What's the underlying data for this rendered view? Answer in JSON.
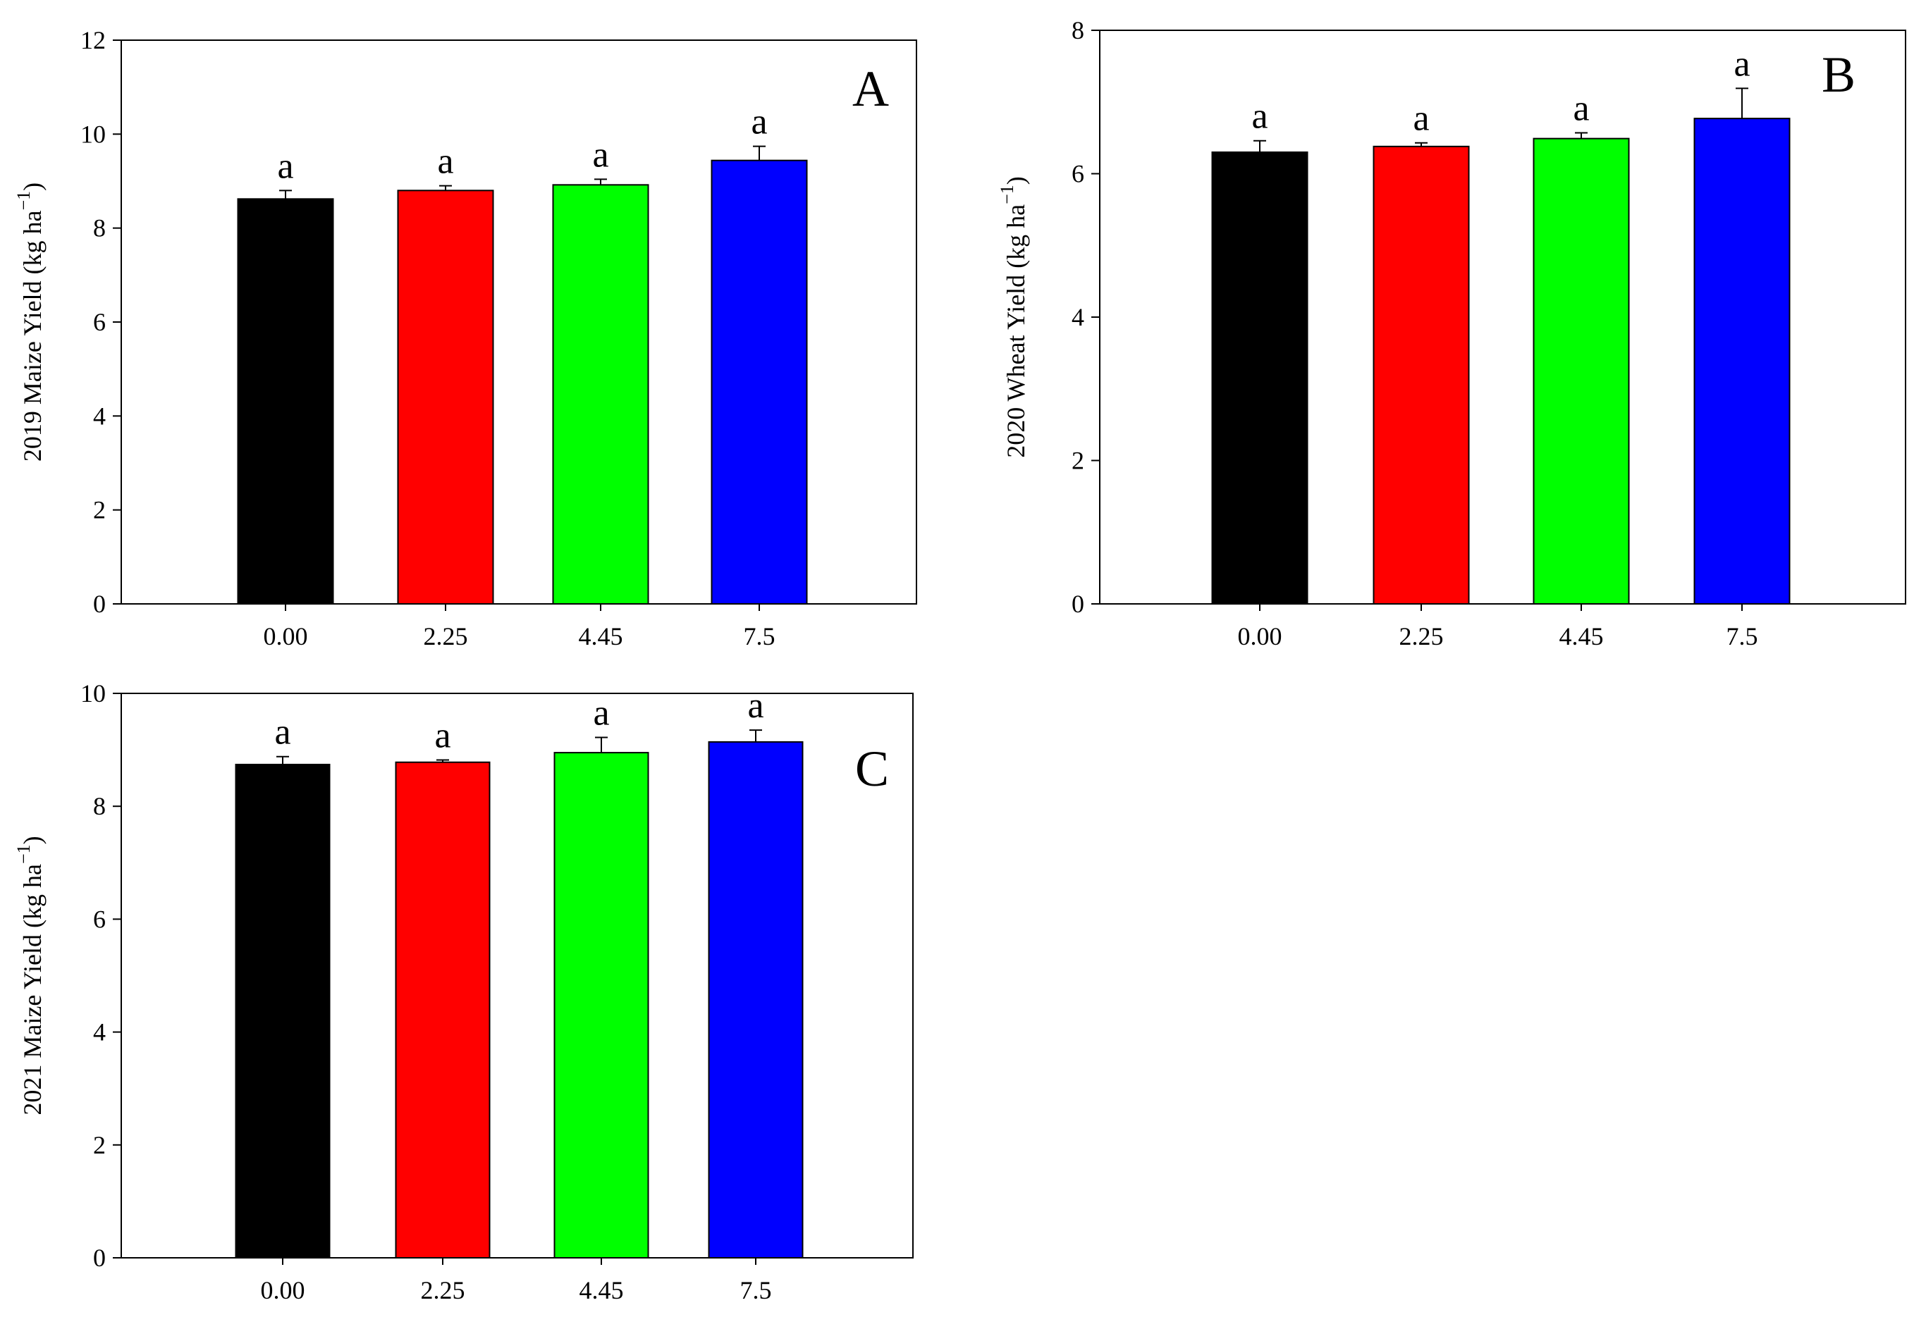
{
  "chart_data": [
    {
      "type": "bar",
      "panel": "A",
      "categories": [
        "0.00",
        "2.25",
        "4.45",
        "7.5"
      ],
      "values": [
        8.62,
        8.8,
        8.92,
        9.44
      ],
      "errors": [
        0.18,
        0.1,
        0.12,
        0.3
      ],
      "significance": [
        "a",
        "a",
        "a",
        "a"
      ],
      "colors": [
        "#000000",
        "#ff0000",
        "#00ff00",
        "#0000ff"
      ],
      "ylabel": "2019 Maize Yield (kg ha",
      "ylabel_sup": "−1",
      "ylabel_close": ")",
      "xlabel": "",
      "ylim": [
        0,
        12
      ],
      "yticks": [
        0,
        2,
        4,
        6,
        8,
        10,
        12
      ]
    },
    {
      "type": "bar",
      "panel": "B",
      "categories": [
        "0.00",
        "2.25",
        "4.45",
        "7.5"
      ],
      "values": [
        6.3,
        6.38,
        6.49,
        6.77
      ],
      "errors": [
        0.16,
        0.05,
        0.08,
        0.42
      ],
      "significance": [
        "a",
        "a",
        "a",
        "a"
      ],
      "colors": [
        "#000000",
        "#ff0000",
        "#00ff00",
        "#0000ff"
      ],
      "ylabel": "2020 Wheat Yield (kg ha",
      "ylabel_sup": "−1",
      "ylabel_close": ")",
      "xlabel": "",
      "ylim": [
        0,
        8
      ],
      "yticks": [
        0,
        2,
        4,
        6,
        8
      ]
    },
    {
      "type": "bar",
      "panel": "C",
      "categories": [
        "0.00",
        "2.25",
        "4.45",
        "7.5"
      ],
      "values": [
        8.74,
        8.78,
        8.95,
        9.14
      ],
      "errors": [
        0.14,
        0.04,
        0.27,
        0.21
      ],
      "significance": [
        "a",
        "a",
        "a",
        "a"
      ],
      "colors": [
        "#000000",
        "#ff0000",
        "#00ff00",
        "#0000ff"
      ],
      "ylabel": "2021 Maize Yield (kg ha",
      "ylabel_sup": "−1",
      "ylabel_close": ")",
      "xlabel": "",
      "ylim": [
        0,
        10
      ],
      "yticks": [
        0,
        2,
        4,
        6,
        8,
        10
      ]
    }
  ]
}
